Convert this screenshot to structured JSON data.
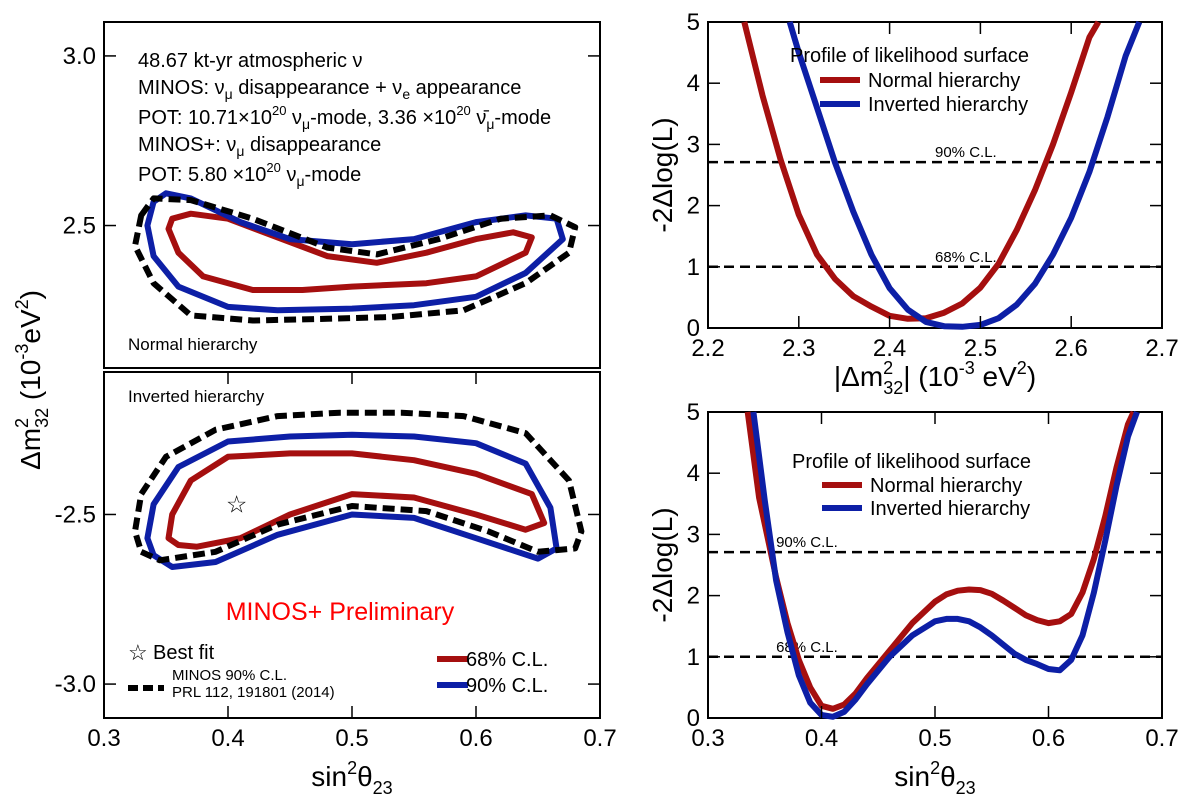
{
  "colors": {
    "normal": "#a50f0f",
    "inverted": "#0d1fa6",
    "minos2014": "#000000",
    "preliminary": "#ff0000"
  },
  "chart_data": [
    {
      "id": "contour-nh",
      "type": "scatter",
      "subtype": "contour",
      "xlim": [
        0.3,
        0.7
      ],
      "ylim": [
        2.08,
        3.1
      ],
      "ylabel_main": "Δm",
      "ylabel_sup": "2",
      "ylabel_sub": "32",
      "ylabel_unit": "(10",
      "ylabel_unit_sup": "-3",
      "ylabel_unit_rest": "eV",
      "ylabel_unit_sup2": "2",
      "ylabel_close": ")",
      "yticks": [
        {
          "v": 3.0,
          "label": "3.0"
        },
        {
          "v": 2.5,
          "label": "2.5"
        }
      ],
      "annotation": "Normal hierarchy",
      "info_lines": [
        {
          "t": "48.67 kt-yr atmospheric ν"
        },
        {
          "t": "MINOS: νμ disappearance + νe appearance"
        },
        {
          "t": "POT: 10.71×1020 νμ-mode, 3.36 ×1020 ν̄μ-mode"
        },
        {
          "t": "MINOS+: νμ disappearance"
        },
        {
          "t": "POT: 5.80 ×1020 νμ-mode"
        }
      ],
      "series": [
        {
          "name": "68% C.L.",
          "points": [
            [
              0.355,
              2.52
            ],
            [
              0.37,
              2.535
            ],
            [
              0.4,
              2.52
            ],
            [
              0.44,
              2.465
            ],
            [
              0.48,
              2.41
            ],
            [
              0.52,
              2.39
            ],
            [
              0.56,
              2.42
            ],
            [
              0.6,
              2.46
            ],
            [
              0.63,
              2.48
            ],
            [
              0.645,
              2.465
            ],
            [
              0.64,
              2.42
            ],
            [
              0.6,
              2.35
            ],
            [
              0.56,
              2.33
            ],
            [
              0.5,
              2.32
            ],
            [
              0.46,
              2.31
            ],
            [
              0.42,
              2.31
            ],
            [
              0.38,
              2.35
            ],
            [
              0.36,
              2.42
            ],
            [
              0.352,
              2.49
            ]
          ]
        },
        {
          "name": "90% C.L.",
          "points": [
            [
              0.34,
              2.57
            ],
            [
              0.35,
              2.595
            ],
            [
              0.37,
              2.58
            ],
            [
              0.41,
              2.51
            ],
            [
              0.45,
              2.46
            ],
            [
              0.5,
              2.445
            ],
            [
              0.55,
              2.46
            ],
            [
              0.6,
              2.51
            ],
            [
              0.64,
              2.53
            ],
            [
              0.665,
              2.52
            ],
            [
              0.67,
              2.46
            ],
            [
              0.64,
              2.36
            ],
            [
              0.6,
              2.29
            ],
            [
              0.55,
              2.265
            ],
            [
              0.5,
              2.255
            ],
            [
              0.44,
              2.25
            ],
            [
              0.4,
              2.26
            ],
            [
              0.36,
              2.32
            ],
            [
              0.34,
              2.41
            ],
            [
              0.335,
              2.5
            ]
          ]
        },
        {
          "name": "MINOS 90% C.L.",
          "points": [
            [
              0.33,
              2.53
            ],
            [
              0.34,
              2.58
            ],
            [
              0.37,
              2.575
            ],
            [
              0.42,
              2.52
            ],
            [
              0.48,
              2.435
            ],
            [
              0.52,
              2.415
            ],
            [
              0.57,
              2.46
            ],
            [
              0.62,
              2.52
            ],
            [
              0.66,
              2.53
            ],
            [
              0.68,
              2.495
            ],
            [
              0.675,
              2.42
            ],
            [
              0.64,
              2.33
            ],
            [
              0.59,
              2.25
            ],
            [
              0.53,
              2.23
            ],
            [
              0.48,
              2.225
            ],
            [
              0.42,
              2.22
            ],
            [
              0.37,
              2.235
            ],
            [
              0.34,
              2.33
            ],
            [
              0.325,
              2.44
            ]
          ]
        }
      ]
    },
    {
      "id": "contour-ih",
      "type": "scatter",
      "subtype": "contour",
      "xlim": [
        0.3,
        0.7
      ],
      "ylim": [
        -3.1,
        -2.08
      ],
      "xlabel": "sin²θ23",
      "xlabel_main": "sin",
      "xlabel_sup": "2",
      "xlabel_greek": "θ",
      "xlabel_sub": "23",
      "xticks": [
        {
          "v": 0.3,
          "label": "0.3"
        },
        {
          "v": 0.4,
          "label": "0.4"
        },
        {
          "v": 0.5,
          "label": "0.5"
        },
        {
          "v": 0.6,
          "label": "0.6"
        },
        {
          "v": 0.7,
          "label": "0.7"
        }
      ],
      "yticks": [
        {
          "v": -2.5,
          "label": "-2.5"
        },
        {
          "v": -3.0,
          "label": "-3.0"
        }
      ],
      "annotation": "Inverted hierarchy",
      "preliminary": "MINOS+ Preliminary",
      "best_fit": {
        "x": 0.407,
        "y": -2.47,
        "label": "Best fit"
      },
      "legend": {
        "minos_line1": "MINOS 90% C.L.",
        "minos_line2": "PRL 112, 191801 (2014)",
        "cl68": "68% C.L.",
        "cl90": "90% C.L."
      },
      "series": [
        {
          "name": "68% C.L.",
          "points": [
            [
              0.36,
              -2.59
            ],
            [
              0.375,
              -2.595
            ],
            [
              0.41,
              -2.57
            ],
            [
              0.45,
              -2.5
            ],
            [
              0.5,
              -2.44
            ],
            [
              0.55,
              -2.45
            ],
            [
              0.6,
              -2.5
            ],
            [
              0.64,
              -2.545
            ],
            [
              0.655,
              -2.525
            ],
            [
              0.645,
              -2.44
            ],
            [
              0.6,
              -2.38
            ],
            [
              0.55,
              -2.34
            ],
            [
              0.5,
              -2.32
            ],
            [
              0.45,
              -2.32
            ],
            [
              0.4,
              -2.33
            ],
            [
              0.37,
              -2.4
            ],
            [
              0.355,
              -2.5
            ],
            [
              0.352,
              -2.57
            ]
          ]
        },
        {
          "name": "90% C.L.",
          "points": [
            [
              0.34,
              -2.62
            ],
            [
              0.355,
              -2.655
            ],
            [
              0.39,
              -2.64
            ],
            [
              0.44,
              -2.56
            ],
            [
              0.5,
              -2.5
            ],
            [
              0.55,
              -2.51
            ],
            [
              0.6,
              -2.57
            ],
            [
              0.65,
              -2.63
            ],
            [
              0.665,
              -2.6
            ],
            [
              0.66,
              -2.48
            ],
            [
              0.64,
              -2.35
            ],
            [
              0.6,
              -2.29
            ],
            [
              0.55,
              -2.27
            ],
            [
              0.5,
              -2.265
            ],
            [
              0.45,
              -2.27
            ],
            [
              0.4,
              -2.285
            ],
            [
              0.36,
              -2.36
            ],
            [
              0.34,
              -2.47
            ],
            [
              0.335,
              -2.57
            ]
          ]
        },
        {
          "name": "MINOS 90% C.L.",
          "points": [
            [
              0.33,
              -2.61
            ],
            [
              0.345,
              -2.635
            ],
            [
              0.39,
              -2.61
            ],
            [
              0.44,
              -2.53
            ],
            [
              0.5,
              -2.475
            ],
            [
              0.56,
              -2.49
            ],
            [
              0.61,
              -2.55
            ],
            [
              0.65,
              -2.61
            ],
            [
              0.68,
              -2.6
            ],
            [
              0.685,
              -2.55
            ],
            [
              0.675,
              -2.4
            ],
            [
              0.64,
              -2.26
            ],
            [
              0.59,
              -2.21
            ],
            [
              0.54,
              -2.2
            ],
            [
              0.49,
              -2.2
            ],
            [
              0.44,
              -2.21
            ],
            [
              0.39,
              -2.25
            ],
            [
              0.35,
              -2.33
            ],
            [
              0.33,
              -2.44
            ],
            [
              0.325,
              -2.55
            ]
          ]
        }
      ]
    },
    {
      "id": "profile-dm",
      "type": "line",
      "xlim": [
        2.2,
        2.7
      ],
      "ylim": [
        0,
        5
      ],
      "ylabel": "-2Δlog(L)",
      "xlabel_pre": "|Δm",
      "xlabel_sup": "2",
      "xlabel_sub": "32",
      "xlabel_mid": "| (10",
      "xlabel_sup2": "-3",
      "xlabel_mid2": " eV",
      "xlabel_sup3": "2",
      "xlabel_end": ")",
      "xticks": [
        {
          "v": 2.2,
          "label": "2.2"
        },
        {
          "v": 2.3,
          "label": "2.3"
        },
        {
          "v": 2.4,
          "label": "2.4"
        },
        {
          "v": 2.5,
          "label": "2.5"
        },
        {
          "v": 2.6,
          "label": "2.6"
        },
        {
          "v": 2.7,
          "label": "2.7"
        }
      ],
      "yticks": [
        {
          "v": 0,
          "label": "0"
        },
        {
          "v": 1,
          "label": "1"
        },
        {
          "v": 2,
          "label": "2"
        },
        {
          "v": 3,
          "label": "3"
        },
        {
          "v": 4,
          "label": "4"
        },
        {
          "v": 5,
          "label": "5"
        }
      ],
      "legend_title": "Profile of likelihood surface",
      "reference_lines": [
        {
          "y": 2.71,
          "label": "90% C.L."
        },
        {
          "y": 1.0,
          "label": "68% C.L."
        }
      ],
      "series": [
        {
          "name": "Normal hierarchy",
          "x": [
            2.24,
            2.25,
            2.26,
            2.28,
            2.3,
            2.32,
            2.34,
            2.36,
            2.38,
            2.4,
            2.42,
            2.44,
            2.46,
            2.48,
            2.5,
            2.52,
            2.54,
            2.56,
            2.58,
            2.6,
            2.62,
            2.63
          ],
          "values": [
            5.0,
            4.4,
            3.8,
            2.75,
            1.85,
            1.2,
            0.8,
            0.52,
            0.35,
            0.2,
            0.15,
            0.16,
            0.25,
            0.4,
            0.66,
            1.05,
            1.6,
            2.25,
            3.0,
            3.85,
            4.75,
            5.0
          ]
        },
        {
          "name": "Inverted hierarchy",
          "x": [
            2.29,
            2.3,
            2.32,
            2.34,
            2.36,
            2.38,
            2.4,
            2.42,
            2.44,
            2.46,
            2.48,
            2.5,
            2.52,
            2.54,
            2.56,
            2.58,
            2.6,
            2.62,
            2.64,
            2.66,
            2.675
          ],
          "values": [
            5.0,
            4.5,
            3.6,
            2.7,
            1.9,
            1.2,
            0.65,
            0.3,
            0.1,
            0.03,
            0.02,
            0.05,
            0.16,
            0.38,
            0.72,
            1.2,
            1.8,
            2.55,
            3.45,
            4.45,
            5.0
          ]
        }
      ]
    },
    {
      "id": "profile-sin",
      "type": "line",
      "xlim": [
        0.3,
        0.7
      ],
      "ylim": [
        0,
        5
      ],
      "ylabel": "-2Δlog(L)",
      "xlabel_main": "sin",
      "xlabel_sup": "2",
      "xlabel_greek": "θ",
      "xlabel_sub": "23",
      "xticks": [
        {
          "v": 0.3,
          "label": "0.3"
        },
        {
          "v": 0.4,
          "label": "0.4"
        },
        {
          "v": 0.5,
          "label": "0.5"
        },
        {
          "v": 0.6,
          "label": "0.6"
        },
        {
          "v": 0.7,
          "label": "0.7"
        }
      ],
      "yticks": [
        {
          "v": 0,
          "label": "0"
        },
        {
          "v": 1,
          "label": "1"
        },
        {
          "v": 2,
          "label": "2"
        },
        {
          "v": 3,
          "label": "3"
        },
        {
          "v": 4,
          "label": "4"
        },
        {
          "v": 5,
          "label": "5"
        }
      ],
      "legend_title": "Profile of likelihood surface",
      "reference_lines": [
        {
          "y": 2.71,
          "label": "90% C.L."
        },
        {
          "y": 1.0,
          "label": "68% C.L."
        }
      ],
      "series": [
        {
          "name": "Normal hierarchy",
          "x": [
            0.335,
            0.345,
            0.36,
            0.37,
            0.38,
            0.39,
            0.4,
            0.41,
            0.42,
            0.43,
            0.44,
            0.46,
            0.48,
            0.5,
            0.51,
            0.52,
            0.53,
            0.54,
            0.55,
            0.56,
            0.57,
            0.58,
            0.59,
            0.6,
            0.61,
            0.62,
            0.63,
            0.64,
            0.65,
            0.66,
            0.67,
            0.675
          ],
          "values": [
            5.0,
            3.6,
            2.3,
            1.55,
            0.95,
            0.5,
            0.2,
            0.15,
            0.22,
            0.4,
            0.65,
            1.1,
            1.55,
            1.9,
            2.02,
            2.08,
            2.1,
            2.09,
            2.03,
            1.92,
            1.8,
            1.68,
            1.6,
            1.55,
            1.58,
            1.7,
            2.05,
            2.6,
            3.3,
            4.1,
            4.8,
            5.0
          ]
        },
        {
          "name": "Inverted hierarchy",
          "x": [
            0.34,
            0.35,
            0.36,
            0.37,
            0.38,
            0.39,
            0.4,
            0.41,
            0.42,
            0.43,
            0.44,
            0.46,
            0.48,
            0.5,
            0.51,
            0.52,
            0.53,
            0.54,
            0.55,
            0.56,
            0.57,
            0.58,
            0.59,
            0.6,
            0.61,
            0.62,
            0.63,
            0.64,
            0.65,
            0.66,
            0.67,
            0.678
          ],
          "values": [
            5.0,
            3.55,
            2.25,
            1.4,
            0.7,
            0.25,
            0.05,
            0.02,
            0.1,
            0.3,
            0.55,
            1.0,
            1.35,
            1.58,
            1.62,
            1.62,
            1.58,
            1.48,
            1.35,
            1.2,
            1.05,
            0.95,
            0.88,
            0.8,
            0.78,
            0.95,
            1.35,
            2.05,
            2.9,
            3.8,
            4.6,
            5.0
          ]
        }
      ]
    }
  ]
}
